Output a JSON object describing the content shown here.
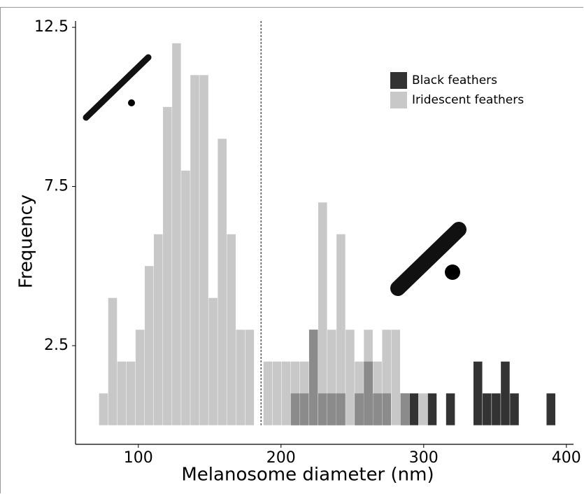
{
  "chart_data": {
    "type": "histogram",
    "x_label": "Melanosome diameter (nm)",
    "y_label": "Frequency",
    "bins": [
      72.5,
      78.9,
      85.3,
      91.7,
      98.1,
      104.5,
      110.9,
      117.3,
      123.7,
      130.1,
      136.5,
      142.9,
      149.3,
      155.7,
      162.1,
      168.5,
      174.9,
      181.3,
      187.7,
      194.1,
      200.5,
      206.9,
      213.3,
      219.7,
      226.1,
      232.5,
      238.9,
      245.3,
      251.7,
      258.1,
      264.5,
      270.9,
      277.3,
      283.7,
      290.1,
      296.5,
      302.9,
      309.3,
      315.7,
      322.1,
      328.5,
      334.9,
      341.3,
      347.7,
      354.1,
      360.5,
      366.9,
      373.3,
      379.7,
      386.1,
      392.5
    ],
    "series": [
      {
        "name": "Black feathers",
        "color": "#333333",
        "opacity": 1,
        "values": [
          0,
          0,
          0,
          0,
          0,
          0,
          0,
          0,
          0,
          0,
          0,
          0,
          0,
          0,
          0,
          0,
          0,
          0,
          0,
          0,
          0,
          1,
          1,
          3,
          1,
          1,
          1,
          0,
          1,
          2,
          1,
          1,
          0,
          1,
          1,
          0,
          1,
          0,
          1,
          0,
          0,
          2,
          1,
          1,
          2,
          1,
          0,
          0,
          0,
          1
        ]
      },
      {
        "name": "Iridescent feathers",
        "color": "#b0b0b0",
        "opacity": 0.7,
        "values": [
          1,
          4,
          2,
          2,
          3,
          5,
          6,
          10,
          12,
          8,
          11,
          11,
          4,
          9,
          6,
          3,
          3,
          0,
          2,
          2,
          2,
          2,
          2,
          3,
          7,
          3,
          6,
          3,
          2,
          3,
          2,
          3,
          3,
          1,
          0,
          1,
          0,
          0,
          0,
          0,
          0,
          0,
          0,
          0,
          0,
          0,
          0,
          0,
          0,
          0
        ]
      }
    ],
    "reference_line": 186,
    "xlim": [
      56,
      405
    ],
    "xticks": [
      100,
      200,
      300,
      400
    ],
    "ylim": [
      -0.6,
      12.7
    ],
    "yticks": [
      2.5,
      7.5,
      12.5
    ],
    "legend": "top-right"
  }
}
